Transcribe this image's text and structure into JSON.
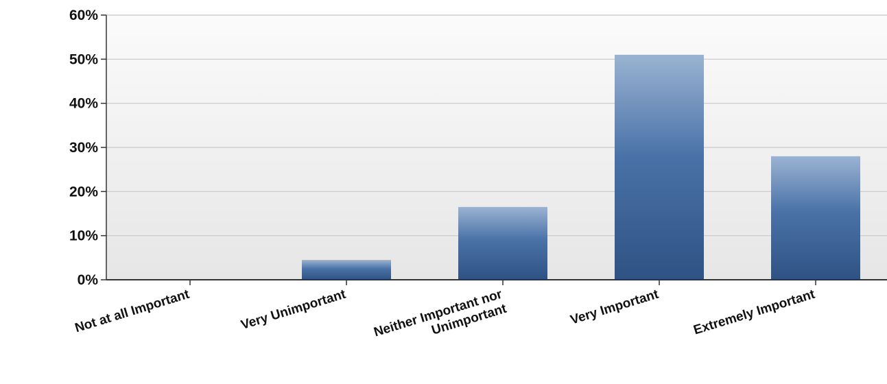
{
  "chart_data": {
    "type": "bar",
    "categories": [
      [
        "Not at all Important"
      ],
      [
        "Very Unimportant"
      ],
      [
        "Neither Important nor",
        "Unimportant"
      ],
      [
        "Very Important"
      ],
      [
        "Extremely Important"
      ]
    ],
    "values": [
      0,
      4.5,
      16.5,
      51,
      28
    ],
    "ylim": [
      0,
      60
    ],
    "yticks": [
      "0%",
      "10%",
      "20%",
      "30%",
      "40%",
      "50%",
      "60%"
    ],
    "ytick_values": [
      0,
      10,
      20,
      30,
      40,
      50,
      60
    ],
    "grid": true,
    "colors": {
      "bar_top": "#9ab3d2",
      "bar_mid": "#4a72a8",
      "bar_bottom": "#2f5283",
      "axis": "#333333",
      "grid": "#c8c8c8",
      "plot_bg_top": "#fbfbfb",
      "plot_bg_bottom": "#e6e6e6"
    }
  }
}
